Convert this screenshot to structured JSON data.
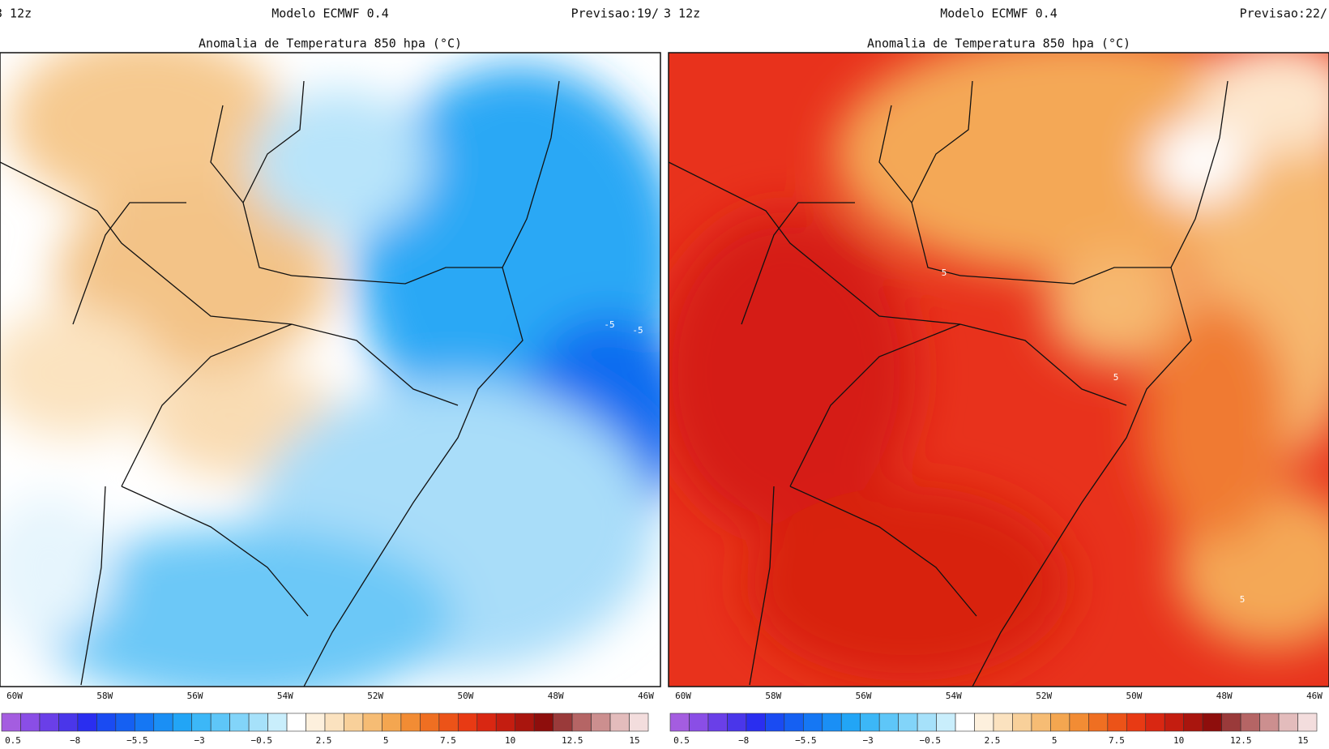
{
  "panels": [
    {
      "run": "3 12z",
      "model": "Modelo ECMWF 0.4",
      "forecast": "Previsao:19/",
      "title": "Anomalia de Temperatura 850 hpa (°C)",
      "longitudes": [
        "60W",
        "58W",
        "56W",
        "54W",
        "52W",
        "50W",
        "48W",
        "46W"
      ],
      "colorbar_labels": [
        "0.5",
        "−8",
        "−5.5",
        "−3",
        "−0.5",
        "2.5",
        "5",
        "7.5",
        "10",
        "12.5",
        "15"
      ],
      "contour_labels": [
        "-5",
        "-5"
      ]
    },
    {
      "run": "3 12z",
      "model": "Modelo ECMWF 0.4",
      "forecast": "Previsao:22/",
      "title": "Anomalia de Temperatura 850 hpa (°C)",
      "longitudes": [
        "60W",
        "58W",
        "56W",
        "54W",
        "52W",
        "50W",
        "48W",
        "46W"
      ],
      "colorbar_labels": [
        "0.5",
        "−8",
        "−5.5",
        "−3",
        "−0.5",
        "2.5",
        "5",
        "7.5",
        "10",
        "12.5",
        "15"
      ],
      "contour_labels": [
        "5",
        "5",
        "5"
      ]
    }
  ],
  "colorbar_colors": [
    "#a45de0",
    "#8a4ee6",
    "#6a3fe8",
    "#4a36ea",
    "#2a2ef0",
    "#1a4bf2",
    "#1560f2",
    "#1577f4",
    "#1a8ff5",
    "#22a5f6",
    "#3cb7f7",
    "#5ec6f8",
    "#82d4f9",
    "#a6e1fa",
    "#c9eefc",
    "#ffffff",
    "#fdf0dd",
    "#fbe2bf",
    "#f8d09a",
    "#f6bc74",
    "#f4a650",
    "#f28c34",
    "#ef6f22",
    "#ec5318",
    "#e83a14",
    "#d92712",
    "#c41d10",
    "#a9150e",
    "#8e0e0c",
    "#9a3a3a",
    "#b56565",
    "#cc8f8f",
    "#e3bcbc",
    "#f3dddd"
  ]
}
